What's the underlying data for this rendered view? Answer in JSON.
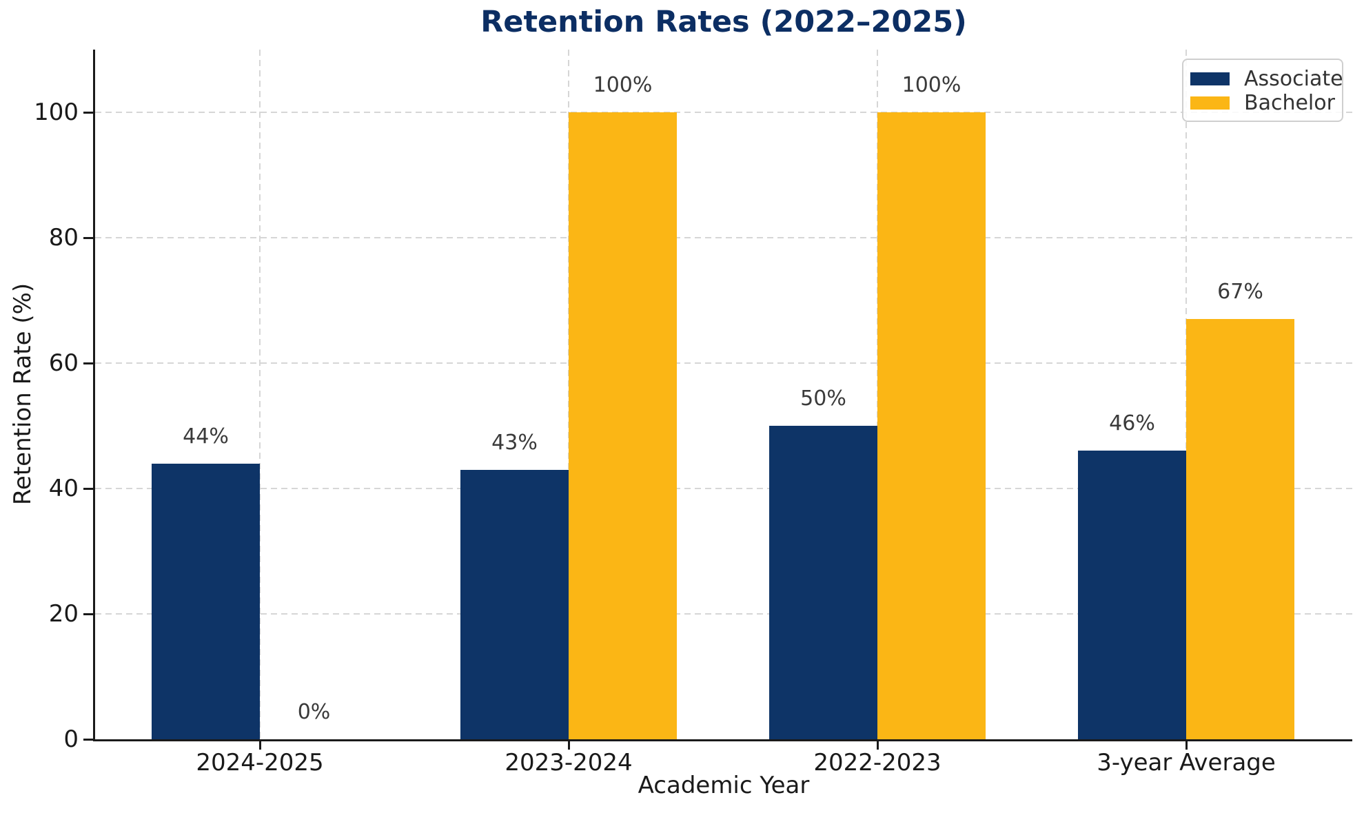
{
  "chart_data": {
    "type": "bar",
    "title": "Retention Rates (2022–2025)",
    "xlabel": "Academic Year",
    "ylabel": "Retention Rate (%)",
    "categories": [
      "2024-2025",
      "2023-2024",
      "2022-2023",
      "3-year Average"
    ],
    "series": [
      {
        "name": "Associate",
        "color": "#0e3467",
        "values": [
          44,
          43,
          50,
          46
        ],
        "value_labels": [
          "44%",
          "43%",
          "50%",
          "46%"
        ]
      },
      {
        "name": "Bachelor",
        "color": "#fbb615",
        "values": [
          0,
          100,
          100,
          67
        ],
        "value_labels": [
          "0%",
          "100%",
          "100%",
          "67%"
        ]
      }
    ],
    "ylim": [
      0,
      110
    ],
    "yticks": [
      0,
      20,
      40,
      60,
      80,
      100
    ],
    "grid": "dashed, horizontal at yticks and vertical at category centers",
    "legend_position": "upper right",
    "colors": {
      "title": "#0c2e63",
      "axis": "#1a1a1a",
      "grid": "#d6d6d6",
      "value_label": "#3a3a3a"
    }
  }
}
